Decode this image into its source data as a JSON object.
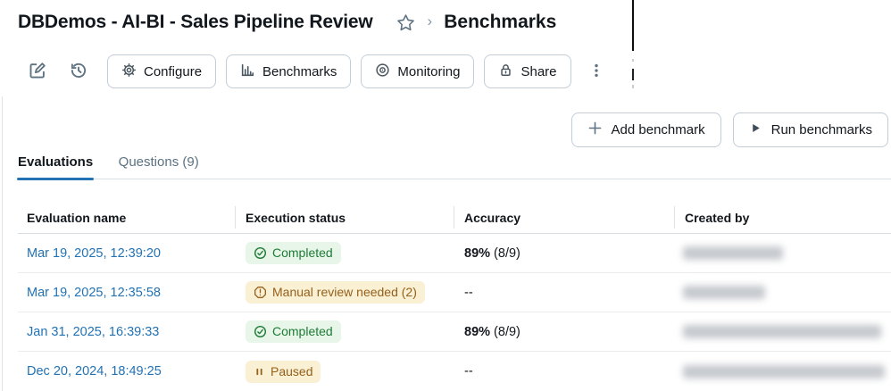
{
  "header": {
    "title": "DBDemos - AI-BI - Sales Pipeline Review",
    "breadcrumb_separator": "›",
    "breadcrumb_current": "Benchmarks"
  },
  "toolbar": {
    "edit_icon": "edit-icon",
    "history_icon": "history-icon",
    "buttons": [
      {
        "label": "Configure",
        "icon": "gear-icon"
      },
      {
        "label": "Benchmarks",
        "icon": "bar-chart-icon"
      },
      {
        "label": "Monitoring",
        "icon": "target-icon"
      },
      {
        "label": "Share",
        "icon": "lock-icon"
      }
    ],
    "kebab_icon": "kebab-menu-icon"
  },
  "actions": {
    "add_label": "Add benchmark",
    "add_icon": "plus-icon",
    "run_label": "Run benchmarks",
    "run_icon": "play-icon"
  },
  "tabs": [
    {
      "label": "Evaluations",
      "active": true
    },
    {
      "label": "Questions (9)",
      "active": false
    }
  ],
  "table": {
    "columns": [
      "Evaluation name",
      "Execution status",
      "Accuracy",
      "Created by"
    ],
    "rows": [
      {
        "name": "Mar 19, 2025, 12:39:20",
        "status": "Completed",
        "status_type": "success",
        "status_icon": "check-circle-icon",
        "accuracy_bold": "89%",
        "accuracy_rest": " (8/9)",
        "created_by_redacted": true,
        "redacted_width": 112,
        "highlighted": false
      },
      {
        "name": "Mar 19, 2025, 12:35:58",
        "status": "Manual review needed (2)",
        "status_type": "warning",
        "status_icon": "alert-octagon-icon",
        "accuracy_bold": "",
        "accuracy_rest": "--",
        "created_by_redacted": true,
        "redacted_width": 92,
        "highlighted": false
      },
      {
        "name": "Jan 31, 2025, 16:39:33",
        "status": "Completed",
        "status_type": "success",
        "status_icon": "check-circle-icon",
        "accuracy_bold": "89%",
        "accuracy_rest": " (8/9)",
        "created_by_redacted": true,
        "redacted_width": 222,
        "highlighted": true
      },
      {
        "name": "Dec 20, 2024, 18:49:25",
        "status": "Paused",
        "status_type": "paused",
        "status_icon": "pause-icon",
        "accuracy_bold": "",
        "accuracy_rest": "--",
        "created_by_redacted": true,
        "redacted_width": 226,
        "highlighted": false
      }
    ]
  },
  "colors": {
    "accent_blue": "#2272B4",
    "link_blue": "#2272B4",
    "success_bg": "#E7F6E9",
    "success_text": "#1E7B35",
    "warning_bg": "#FAF0D4",
    "warning_text": "#95601B",
    "button_border": "#C3CDD8",
    "icon_slate": "#5F7281"
  }
}
